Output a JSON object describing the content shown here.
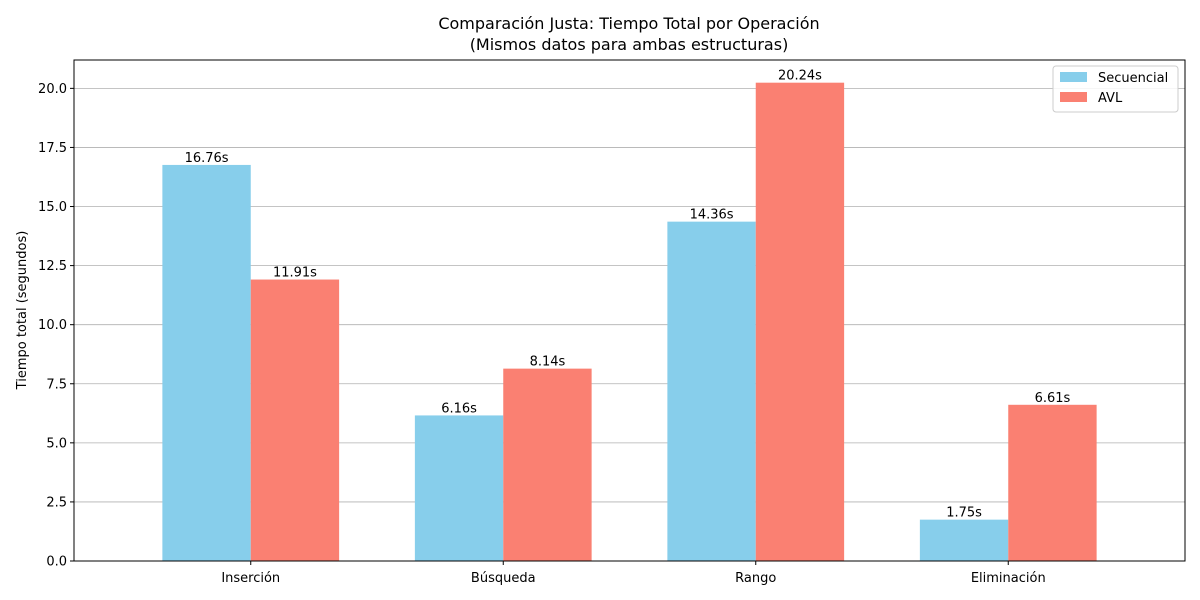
{
  "chart_data": {
    "type": "bar",
    "title": "Comparación Justa: Tiempo Total por Operación",
    "subtitle": "(Mismos datos para ambas estructuras)",
    "xlabel": "",
    "ylabel": "Tiempo total (segundos)",
    "categories": [
      "Inserción",
      "Búsqueda",
      "Rango",
      "Eliminación"
    ],
    "series": [
      {
        "name": "Secuencial",
        "color": "#87CEEB",
        "values": [
          16.76,
          6.16,
          14.36,
          1.75
        ],
        "labels": [
          "16.76s",
          "6.16s",
          "14.36s",
          "1.75s"
        ]
      },
      {
        "name": "AVL",
        "color": "#FA8072",
        "values": [
          11.91,
          8.14,
          20.24,
          6.61
        ],
        "labels": [
          "11.91s",
          "8.14s",
          "20.24s",
          "6.61s"
        ]
      }
    ],
    "ylim": [
      0,
      21.2
    ],
    "yticks": [
      0,
      2.5,
      5,
      7.5,
      10,
      12.5,
      15,
      17.5,
      20
    ],
    "ytick_labels": [
      "0.0",
      "2.5",
      "5.0",
      "7.5",
      "10.0",
      "12.5",
      "15.0",
      "17.5",
      "20.0"
    ],
    "grid": "y",
    "legend_position": "top-right"
  }
}
